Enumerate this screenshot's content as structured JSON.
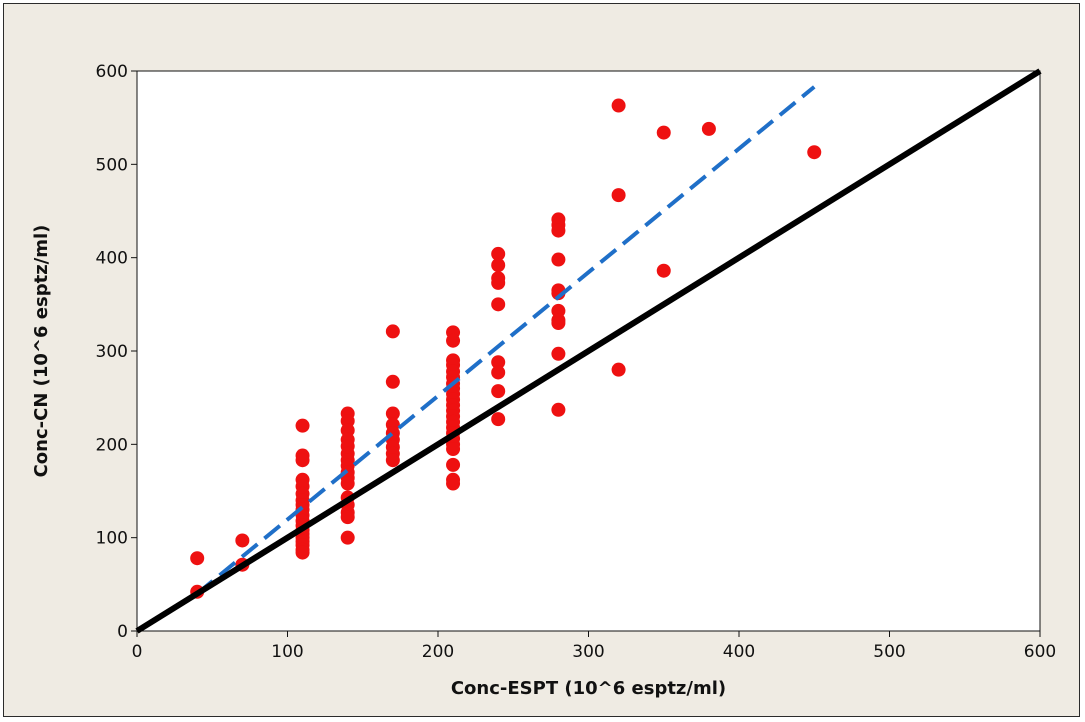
{
  "chart_data": {
    "type": "scatter",
    "title": "",
    "xlabel": "Conc-ESPT (10^6 esptz/ml)",
    "ylabel": "Conc-CN (10^6 esptz/ml)",
    "xlim": [
      0,
      600
    ],
    "ylim": [
      0,
      600
    ],
    "x_ticks": [
      0,
      100,
      200,
      300,
      400,
      500,
      600
    ],
    "y_ticks": [
      0,
      100,
      200,
      300,
      400,
      500,
      600
    ],
    "grid": false,
    "legend": "none",
    "points": {
      "color": "#ee1111",
      "values": [
        [
          40,
          78
        ],
        [
          40,
          42
        ],
        [
          70,
          97
        ],
        [
          70,
          71
        ],
        [
          110,
          220
        ],
        [
          110,
          188
        ],
        [
          110,
          183
        ],
        [
          110,
          162
        ],
        [
          110,
          155
        ],
        [
          110,
          147
        ],
        [
          110,
          140
        ],
        [
          110,
          135
        ],
        [
          110,
          130
        ],
        [
          110,
          124
        ],
        [
          110,
          118
        ],
        [
          110,
          113
        ],
        [
          110,
          108
        ],
        [
          110,
          104
        ],
        [
          110,
          100
        ],
        [
          110,
          96
        ],
        [
          110,
          92
        ],
        [
          110,
          87
        ],
        [
          110,
          84
        ],
        [
          140,
          233
        ],
        [
          140,
          225
        ],
        [
          140,
          215
        ],
        [
          140,
          205
        ],
        [
          140,
          198
        ],
        [
          140,
          190
        ],
        [
          140,
          183
        ],
        [
          140,
          177
        ],
        [
          140,
          170
        ],
        [
          140,
          164
        ],
        [
          140,
          158
        ],
        [
          140,
          143
        ],
        [
          140,
          135
        ],
        [
          140,
          127
        ],
        [
          140,
          122
        ],
        [
          140,
          100
        ],
        [
          170,
          321
        ],
        [
          170,
          267
        ],
        [
          170,
          233
        ],
        [
          170,
          221
        ],
        [
          170,
          212
        ],
        [
          170,
          205
        ],
        [
          170,
          197
        ],
        [
          170,
          190
        ],
        [
          170,
          183
        ],
        [
          210,
          320
        ],
        [
          210,
          311
        ],
        [
          210,
          290
        ],
        [
          210,
          285
        ],
        [
          210,
          278
        ],
        [
          210,
          272
        ],
        [
          210,
          265
        ],
        [
          210,
          260
        ],
        [
          210,
          254
        ],
        [
          210,
          248
        ],
        [
          210,
          242
        ],
        [
          210,
          236
        ],
        [
          210,
          230
        ],
        [
          210,
          224
        ],
        [
          210,
          218
        ],
        [
          210,
          212
        ],
        [
          210,
          206
        ],
        [
          210,
          200
        ],
        [
          210,
          195
        ],
        [
          210,
          178
        ],
        [
          210,
          162
        ],
        [
          210,
          158
        ],
        [
          240,
          404
        ],
        [
          240,
          392
        ],
        [
          240,
          378
        ],
        [
          240,
          373
        ],
        [
          240,
          350
        ],
        [
          240,
          288
        ],
        [
          240,
          277
        ],
        [
          240,
          257
        ],
        [
          240,
          227
        ],
        [
          280,
          441
        ],
        [
          280,
          435
        ],
        [
          280,
          429
        ],
        [
          280,
          398
        ],
        [
          280,
          365
        ],
        [
          280,
          362
        ],
        [
          280,
          343
        ],
        [
          280,
          333
        ],
        [
          280,
          330
        ],
        [
          280,
          297
        ],
        [
          280,
          237
        ],
        [
          320,
          563
        ],
        [
          320,
          467
        ],
        [
          320,
          280
        ],
        [
          350,
          534
        ],
        [
          350,
          386
        ],
        [
          380,
          538
        ],
        [
          450,
          513
        ]
      ]
    },
    "lines": [
      {
        "style": "dashed",
        "color": "#1f6fc8",
        "points": [
          [
            40,
            40
          ],
          [
            450,
            583
          ]
        ]
      },
      {
        "style": "solid",
        "color": "#000000",
        "points": [
          [
            0,
            0
          ],
          [
            600,
            600
          ]
        ]
      }
    ]
  }
}
